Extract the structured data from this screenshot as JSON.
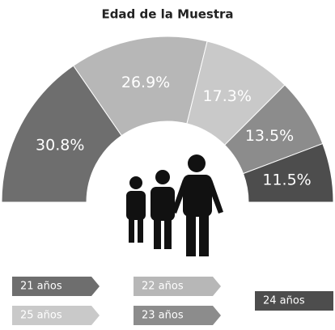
{
  "chart_data": {
    "type": "pie",
    "title": "Edad de la Muestra",
    "categories": [
      "21 años",
      "22 años",
      "25 años",
      "23 años",
      "24 años"
    ],
    "values": [
      30.8,
      26.9,
      17.3,
      13.5,
      11.5
    ],
    "value_labels": [
      "30.8%",
      "26.9%",
      "17.3%",
      "13.5%",
      "11.5%"
    ],
    "colors": [
      "#6e6e6e",
      "#b7b7b7",
      "#c9c9c9",
      "#8c8c8c",
      "#4d4d4d"
    ]
  }
}
